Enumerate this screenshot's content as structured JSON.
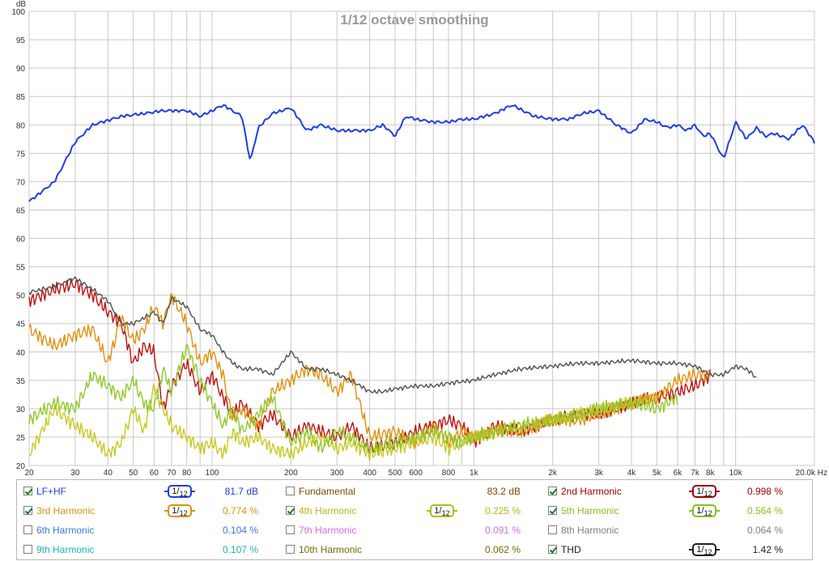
{
  "chart_data": {
    "type": "line",
    "title": "1/12 octave smoothing",
    "ylabel": "dB",
    "xunit": "Hz",
    "xscale": "log",
    "xlim": [
      20,
      20000
    ],
    "ylim": [
      20,
      100
    ],
    "grid": true,
    "y_ticks": [
      20,
      25,
      30,
      35,
      40,
      45,
      50,
      55,
      60,
      65,
      70,
      75,
      80,
      85,
      90,
      95,
      100
    ],
    "x_ticks": [
      {
        "v": 20,
        "t": "20"
      },
      {
        "v": 30,
        "t": "30"
      },
      {
        "v": 40,
        "t": "40"
      },
      {
        "v": 50,
        "t": "50"
      },
      {
        "v": 60,
        "t": "60"
      },
      {
        "v": 70,
        "t": "70"
      },
      {
        "v": 80,
        "t": "80"
      },
      {
        "v": 100,
        "t": "100"
      },
      {
        "v": 200,
        "t": "200"
      },
      {
        "v": 300,
        "t": "300"
      },
      {
        "v": 400,
        "t": "400"
      },
      {
        "v": 500,
        "t": "500"
      },
      {
        "v": 600,
        "t": "600"
      },
      {
        "v": 800,
        "t": "800"
      },
      {
        "v": 1000,
        "t": "1k"
      },
      {
        "v": 2000,
        "t": "2k"
      },
      {
        "v": 3000,
        "t": "3k"
      },
      {
        "v": 4000,
        "t": "4k"
      },
      {
        "v": 5000,
        "t": "5k"
      },
      {
        "v": 6000,
        "t": "6k"
      },
      {
        "v": 7000,
        "t": "7k"
      },
      {
        "v": 8000,
        "t": "8k"
      },
      {
        "v": 10000,
        "t": "10k"
      },
      {
        "v": 20000,
        "t": "20.0k Hz"
      }
    ],
    "series": [
      {
        "name": "LF+HF",
        "color": "#1f3fe0",
        "x": [
          20,
          25,
          30,
          35,
          45,
          55,
          65,
          80,
          90,
          100,
          110,
          130,
          140,
          150,
          170,
          200,
          230,
          260,
          300,
          340,
          400,
          450,
          500,
          550,
          600,
          700,
          800,
          900,
          1000,
          1200,
          1400,
          1700,
          2000,
          2300,
          2600,
          3000,
          3500,
          4000,
          4500,
          5000,
          5500,
          6000,
          6500,
          7000,
          7500,
          8000,
          9000,
          10000,
          11000,
          12000,
          13000,
          14000,
          16000,
          18000,
          20000
        ],
        "y": [
          66.5,
          70,
          77,
          80,
          81.5,
          82,
          82.5,
          82.5,
          81.5,
          82.5,
          83.5,
          81.5,
          73.5,
          79.5,
          82,
          83,
          79,
          80,
          79,
          79,
          79,
          80,
          78,
          81.5,
          81,
          80.5,
          80.5,
          81,
          81,
          82,
          83.5,
          81.5,
          81,
          81,
          82,
          82.5,
          80,
          78.5,
          81,
          80.5,
          79.5,
          80,
          79,
          80,
          78,
          78.5,
          74,
          80.5,
          77.5,
          79.5,
          78,
          78.5,
          77.5,
          80,
          77
        ]
      },
      {
        "name": "2nd Harmonic",
        "color": "#c01010",
        "x": [
          20,
          25,
          30,
          35,
          40,
          45,
          50,
          55,
          60,
          65,
          70,
          80,
          90,
          100,
          110,
          120,
          130,
          150,
          170,
          200,
          230,
          260,
          300,
          340,
          400,
          500,
          600,
          700,
          800,
          900,
          1000,
          1200,
          1500,
          2000,
          2500,
          3000,
          4000,
          5000,
          6000,
          7000,
          8000
        ],
        "y": [
          49,
          51,
          52,
          50,
          47,
          45,
          38,
          41,
          40,
          30,
          34,
          38,
          33,
          36,
          32,
          29,
          31,
          27,
          29,
          25,
          27,
          26,
          25,
          27,
          23,
          24,
          26,
          27,
          28,
          27,
          24,
          27,
          26,
          28,
          29,
          29,
          31,
          32,
          33,
          34,
          36
        ]
      },
      {
        "name": "3rd Harmonic",
        "color": "#e0900a",
        "x": [
          20,
          25,
          30,
          35,
          40,
          45,
          50,
          55,
          60,
          65,
          70,
          80,
          90,
          100,
          110,
          120,
          130,
          150,
          170,
          200,
          230,
          260,
          300,
          340,
          400,
          500,
          600,
          700,
          800,
          900,
          1000,
          1200,
          1500,
          2000,
          2500,
          3000,
          4000,
          5000,
          6000,
          7000,
          8000
        ],
        "y": [
          44,
          41,
          43,
          44,
          38,
          46,
          42,
          44,
          48,
          45,
          50,
          45,
          38,
          40,
          36,
          28,
          30,
          27,
          33,
          35,
          37,
          36,
          33,
          36,
          25,
          26,
          24,
          27,
          24,
          26,
          25,
          26,
          26,
          28,
          28,
          29,
          31,
          32,
          35,
          36,
          36
        ]
      },
      {
        "name": "4th Harmonic",
        "color": "#c8c820",
        "x": [
          20,
          25,
          30,
          35,
          40,
          45,
          50,
          55,
          60,
          65,
          70,
          80,
          90,
          100,
          110,
          120,
          130,
          150,
          170,
          200,
          230,
          260,
          300,
          340,
          400,
          500,
          600,
          700,
          800,
          900,
          1000,
          1200,
          1500,
          2000,
          2500,
          3000,
          4000,
          5000
        ],
        "y": [
          22,
          30,
          27,
          25,
          22,
          24,
          30,
          26,
          34,
          30,
          27,
          25,
          23,
          24,
          22,
          26,
          24,
          25,
          23,
          22,
          24,
          25,
          23,
          24,
          22,
          23,
          24,
          25,
          23,
          24,
          25,
          26,
          27,
          28,
          29,
          30,
          31,
          32
        ]
      },
      {
        "name": "5th Harmonic",
        "color": "#90c828",
        "x": [
          20,
          25,
          30,
          35,
          40,
          45,
          50,
          55,
          60,
          65,
          70,
          80,
          90,
          100,
          110,
          120,
          130,
          150,
          170,
          200,
          230,
          260,
          300,
          340,
          400,
          500,
          600,
          700,
          800,
          900,
          1000,
          1200,
          1500,
          2000,
          2500,
          3000,
          4000,
          5000,
          6000
        ],
        "y": [
          28,
          31,
          30,
          36,
          34,
          32,
          35,
          31,
          30,
          37,
          33,
          41,
          35,
          31,
          27,
          30,
          26,
          29,
          32,
          24,
          26,
          23,
          26,
          25,
          23,
          24,
          25,
          26,
          25,
          24,
          25,
          26,
          27,
          28,
          29,
          30,
          31,
          30,
          32
        ]
      },
      {
        "name": "THD",
        "color": "#505050",
        "x": [
          20,
          25,
          30,
          35,
          40,
          45,
          50,
          55,
          60,
          65,
          70,
          80,
          90,
          100,
          110,
          120,
          130,
          150,
          170,
          200,
          230,
          260,
          300,
          340,
          400,
          450,
          500,
          600,
          700,
          800,
          1000,
          1200,
          1500,
          2000,
          2500,
          3000,
          4000,
          5000,
          6000,
          7000,
          8000,
          9000,
          10000,
          11000,
          12000
        ],
        "y": [
          50.5,
          51.5,
          53,
          51,
          49,
          45,
          45,
          46,
          47,
          45,
          49.5,
          48,
          44,
          43,
          40,
          38,
          37,
          37,
          36,
          40,
          37,
          37,
          36,
          35,
          33,
          33,
          33.5,
          34,
          34,
          34.5,
          35,
          36,
          37,
          37.5,
          38,
          38,
          38.5,
          38,
          38,
          37.5,
          36,
          36,
          37.5,
          37,
          35.5
        ]
      }
    ]
  },
  "legend": {
    "rows": [
      [
        {
          "checked": true,
          "label": "LF+HF",
          "color": "#1f3fe0",
          "smoothing": true,
          "value": "81.7 dB"
        },
        {
          "checked": false,
          "label": "Fundamental",
          "color": "#7a4a00",
          "smoothing": false,
          "value": "83.2 dB"
        },
        {
          "checked": true,
          "label": "2nd Harmonic",
          "color": "#a00000",
          "smoothing": true,
          "value": "0.998 %"
        }
      ],
      [
        {
          "checked": true,
          "label": "3rd Harmonic",
          "color": "#e0900a",
          "smoothing": true,
          "value": "0.774 %"
        },
        {
          "checked": true,
          "label": "4th Harmonic",
          "color": "#b8b818",
          "smoothing": true,
          "value": "0.225 %"
        },
        {
          "checked": true,
          "label": "5th Harmonic",
          "color": "#88c020",
          "smoothing": true,
          "value": "0.564 %"
        }
      ],
      [
        {
          "checked": false,
          "label": "6th Harmonic",
          "color": "#3a7ad8",
          "smoothing": false,
          "value": "0.104 %"
        },
        {
          "checked": false,
          "label": "7th Harmonic",
          "color": "#d070d8",
          "smoothing": false,
          "value": "0.091 %"
        },
        {
          "checked": false,
          "label": "8th Harmonic",
          "color": "#808080",
          "smoothing": false,
          "value": "0.064 %"
        }
      ],
      [
        {
          "checked": false,
          "label": "9th Harmonic",
          "color": "#20b0b8",
          "smoothing": false,
          "value": "0.107 %"
        },
        {
          "checked": false,
          "label": "10th Harmonic",
          "color": "#7a6a00",
          "smoothing": false,
          "value": "0.062 %"
        },
        {
          "checked": true,
          "label": "THD",
          "color": "#202020",
          "smoothing": true,
          "value": "1.42 %"
        }
      ]
    ],
    "smoothing_label": "1/12",
    "smoothing_num": "1",
    "smoothing_den": "12"
  }
}
